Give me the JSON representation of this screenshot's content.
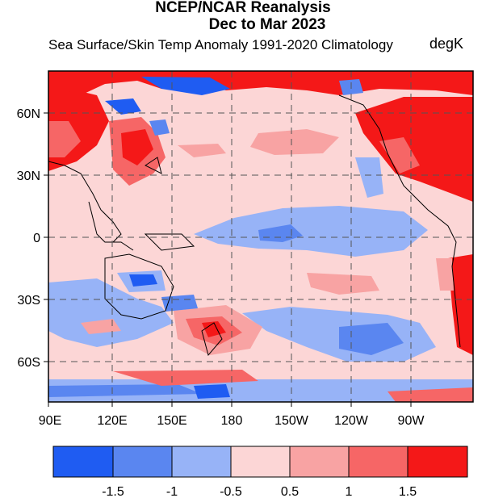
{
  "header": {
    "title_line1": "NCEP/NCAR Reanalysis",
    "title_line2": "Dec to Mar 2023",
    "subtitle": "Sea Surface/Skin Temp Anomaly  1991-2020 Climatology",
    "units": "degK"
  },
  "map": {
    "lat_labels": [
      {
        "text": "60N",
        "lat": 60
      },
      {
        "text": "30N",
        "lat": 30
      },
      {
        "text": "0",
        "lat": 0
      },
      {
        "text": "30S",
        "lat": -30
      },
      {
        "text": "60S",
        "lat": -60
      }
    ],
    "lon_labels": [
      {
        "text": "90E",
        "lon": 90
      },
      {
        "text": "120E",
        "lon": 120
      },
      {
        "text": "150E",
        "lon": 150
      },
      {
        "text": "180",
        "lon": 180
      },
      {
        "text": "150W",
        "lon": 210
      },
      {
        "text": "120W",
        "lon": 240
      },
      {
        "text": "90W",
        "lon": 270
      }
    ],
    "lon_range": [
      90,
      290
    ],
    "lat_range": [
      -80,
      80
    ],
    "grid": true
  },
  "colorbar": {
    "colors": [
      "#1f5cf2",
      "#5a86f0",
      "#97b3f7",
      "#fcd6d6",
      "#f8a3a3",
      "#f66666",
      "#f41818"
    ],
    "labels": [
      "-1.5",
      "-1",
      "-0.5",
      "0.5",
      "1",
      "1.5"
    ]
  }
}
